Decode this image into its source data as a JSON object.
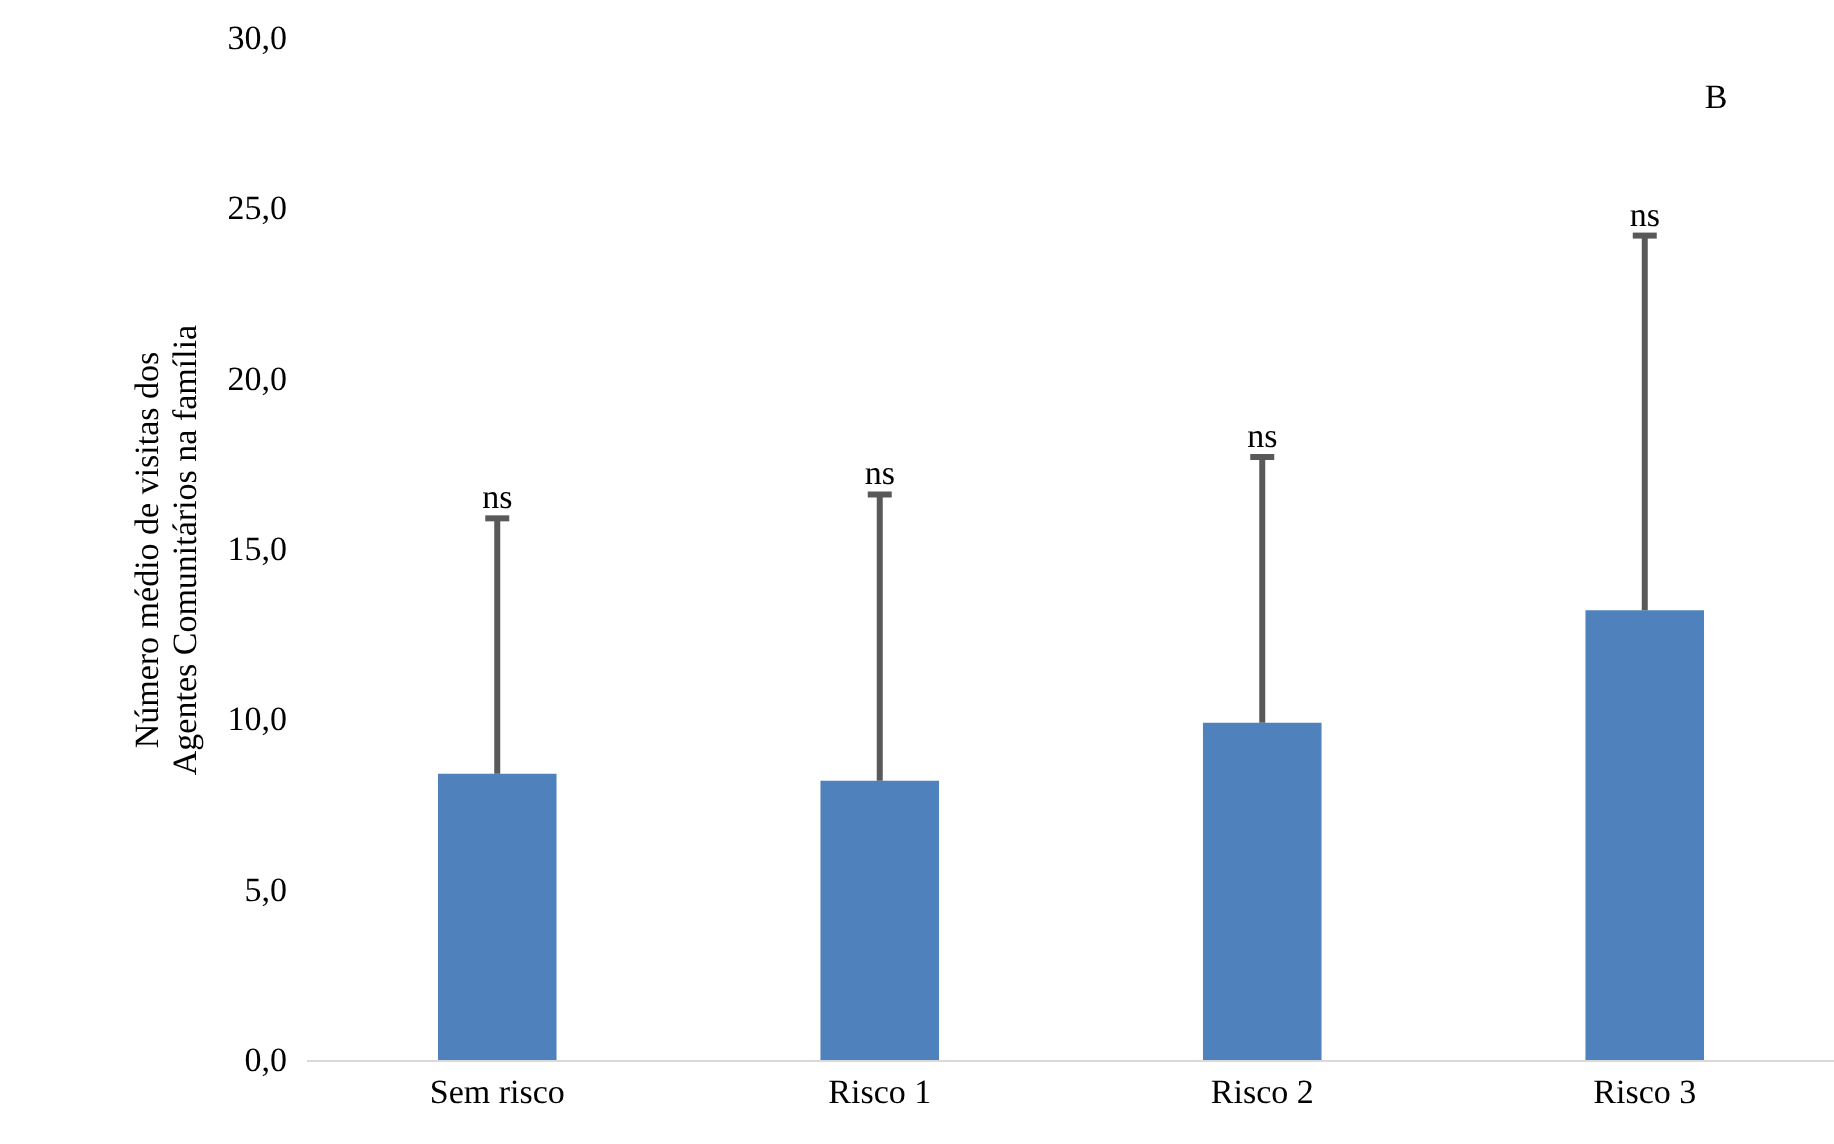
{
  "chart_data": {
    "type": "bar",
    "ylabel": "Número médio de visitas dos Agentes Comunitários na família",
    "categories": [
      "Sem risco",
      "Risco 1",
      "Risco 2",
      "Risco 3"
    ],
    "values": [
      8.4,
      8.2,
      9.9,
      13.2
    ],
    "color": "#4f81bd",
    "errors": [
      [
        8.4,
        15.9
      ],
      [
        8.2,
        16.6
      ],
      [
        9.9,
        17.7
      ],
      [
        13.2,
        24.2
      ]
    ],
    "ylim": [
      0,
      30
    ],
    "yticks": [
      {
        "value": 0,
        "label": "0,0"
      },
      {
        "value": 5,
        "label": "5,0"
      },
      {
        "value": 10,
        "label": "10,0"
      },
      {
        "value": 15,
        "label": "15,0"
      },
      {
        "value": 20,
        "label": "20,0"
      },
      {
        "value": 25,
        "label": "25,0"
      },
      {
        "value": 30,
        "label": "30,0"
      }
    ],
    "grid": false,
    "annotations": [
      {
        "text": "ns",
        "x": "Sem risco",
        "y": 15.9
      },
      {
        "text": "ns",
        "x": "Risco 1",
        "y": 16.6
      },
      {
        "text": "ns",
        "x": "Risco 2",
        "y": 17.7
      },
      {
        "text": "ns",
        "x": "Risco 3",
        "y": 24.2
      },
      "B"
    ]
  }
}
